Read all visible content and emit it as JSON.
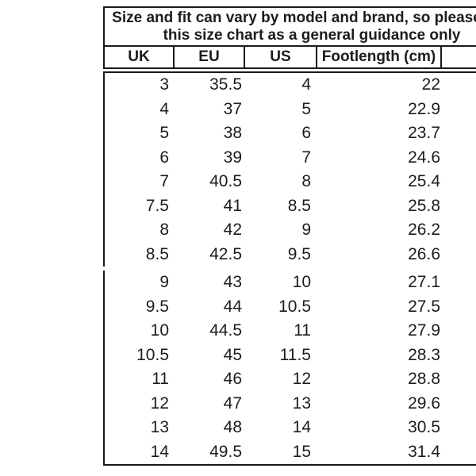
{
  "title": {
    "line1": "Size and fit can vary by model and brand, so please use",
    "line2": "this size chart as a general guidance only"
  },
  "chart_data": {
    "type": "table",
    "title": "Size and fit can vary by model and brand, so please use this size chart as a general guidance only",
    "columns": [
      "UK",
      "EU",
      "US",
      "Footlength (cm)",
      ""
    ],
    "sections": [
      {
        "rows": [
          [
            "3",
            "35.5",
            "4",
            "22"
          ],
          [
            "4",
            "37",
            "5",
            "22.9"
          ],
          [
            "5",
            "38",
            "6",
            "23.7"
          ],
          [
            "6",
            "39",
            "7",
            "24.6"
          ],
          [
            "7",
            "40.5",
            "8",
            "25.4"
          ],
          [
            "7.5",
            "41",
            "8.5",
            "25.8"
          ],
          [
            "8",
            "42",
            "9",
            "26.2"
          ],
          [
            "8.5",
            "42.5",
            "9.5",
            "26.6"
          ]
        ]
      },
      {
        "rows": [
          [
            "9",
            "43",
            "10",
            "27.1"
          ],
          [
            "9.5",
            "44",
            "10.5",
            "27.5"
          ],
          [
            "10",
            "44.5",
            "11",
            "27.9"
          ],
          [
            "10.5",
            "45",
            "11.5",
            "28.3"
          ],
          [
            "11",
            "46",
            "12",
            "28.8"
          ],
          [
            "12",
            "47",
            "13",
            "29.6"
          ],
          [
            "13",
            "48",
            "14",
            "30.5"
          ],
          [
            "14",
            "49.5",
            "15",
            "31.4"
          ]
        ]
      }
    ]
  },
  "colors": {
    "border": "#1a1a1a",
    "text": "#1c1c1c",
    "background": "#ffffff"
  }
}
